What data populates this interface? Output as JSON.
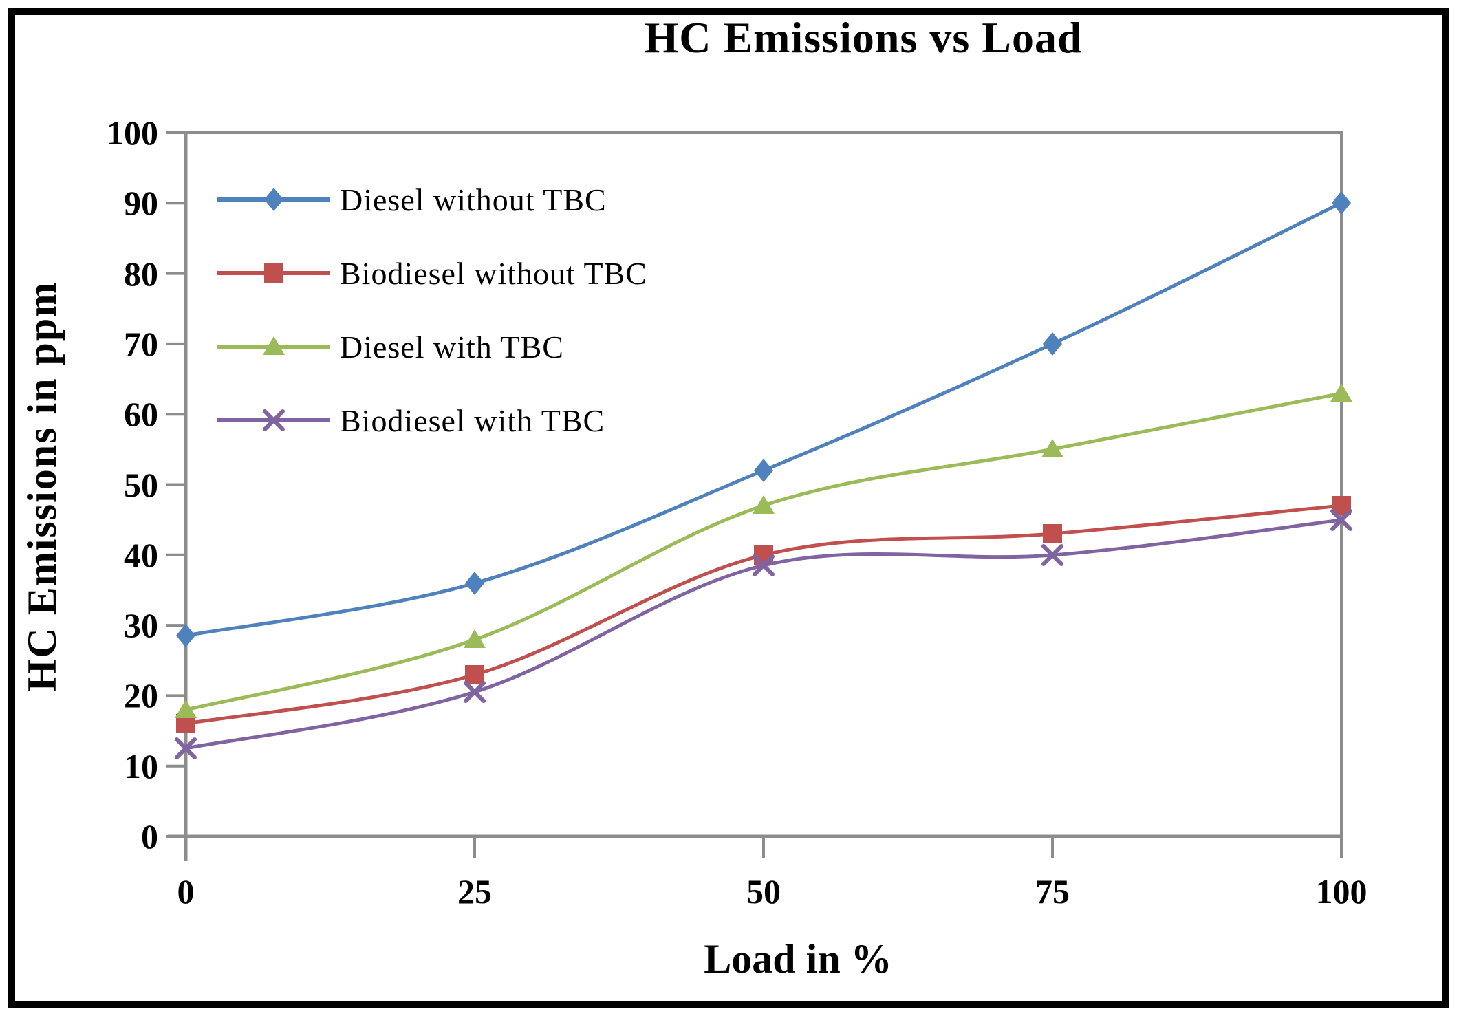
{
  "chart_data": {
    "type": "line",
    "title": "HC Emissions vs Load",
    "xlabel": "Load in %",
    "ylabel": "HC Emissions in ppm",
    "xlim": [
      0,
      100
    ],
    "ylim": [
      0,
      100
    ],
    "grid": false,
    "smoothed_lines": true,
    "legend_position": "inside top-left, no border",
    "x": [
      0,
      25,
      50,
      75,
      100
    ],
    "x_tick_labels": [
      "0",
      "25",
      "50",
      "75",
      "100"
    ],
    "y_ticks": [
      100,
      90,
      80,
      70,
      60,
      50,
      40,
      30,
      20,
      10,
      0
    ],
    "y_tick_labels": [
      "100",
      "90",
      "80",
      "70",
      "60",
      "50",
      "40",
      "30",
      "20",
      "10",
      "0"
    ],
    "series": [
      {
        "name": "Diesel without TBC",
        "color": "#4F81BD",
        "marker": "diamond",
        "values": [
          28.5,
          36,
          52,
          70,
          90
        ]
      },
      {
        "name": "Biodiesel without TBC",
        "color": "#C0504D",
        "marker": "square",
        "values": [
          16,
          23,
          40,
          43,
          47
        ]
      },
      {
        "name": "Diesel with TBC",
        "color": "#9BBB59",
        "marker": "triangle",
        "values": [
          18,
          28,
          47,
          55,
          63
        ]
      },
      {
        "name": "Biodiesel with TBC",
        "color": "#8064A2",
        "marker": "x",
        "values": [
          12.5,
          20.5,
          38.5,
          40,
          45
        ]
      }
    ],
    "axis_color": "#8C8C8C",
    "text_color": "#000000"
  }
}
